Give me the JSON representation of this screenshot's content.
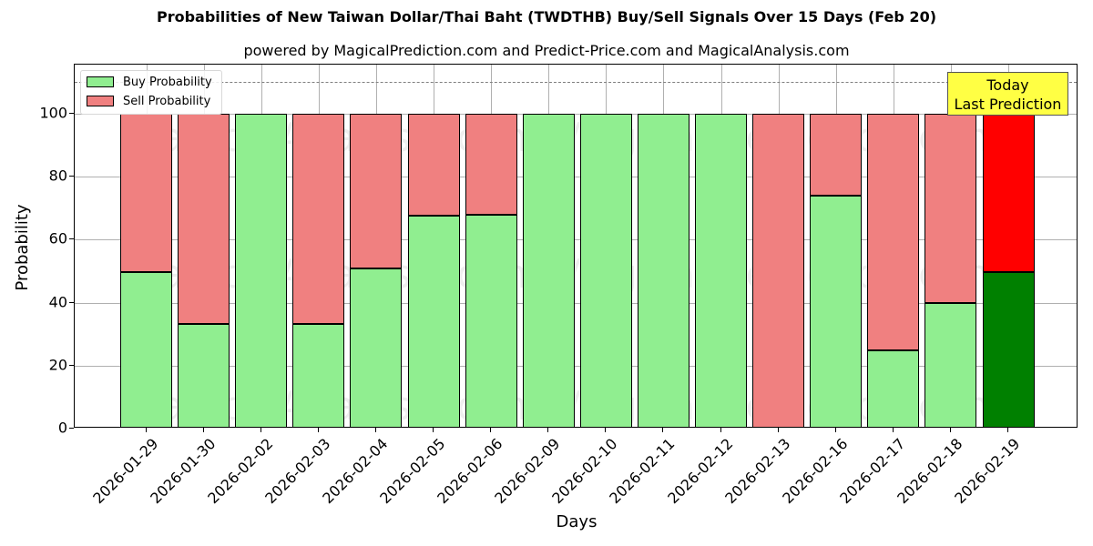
{
  "header": {
    "title": "Probabilities of New Taiwan Dollar/Thai Baht (TWDTHB) Buy/Sell Signals Over 15 Days (Feb 20)",
    "subtitle": "powered by MagicalPrediction.com and Predict-Price.com and MagicalAnalysis.com"
  },
  "axes": {
    "xlabel": "Days",
    "ylabel": "Probability",
    "yticks": [
      "0",
      "20",
      "40",
      "60",
      "80",
      "100"
    ]
  },
  "legend": {
    "buy_label": "Buy Probability",
    "sell_label": "Sell Probability"
  },
  "annotation": {
    "line1": "Today",
    "line2": "Last Prediction"
  },
  "watermarks": [
    "MagicalAnalysis.com",
    "MagicalPrediction.com"
  ],
  "colors": {
    "buy": "#90ee90",
    "sell": "#f08080",
    "today_buy": "#008000",
    "today_sell": "#ff0000",
    "annotation_bg": "#ffff44",
    "threshold_line": "#808080"
  },
  "chart_data": {
    "type": "bar",
    "stacked": true,
    "title": "Probabilities of New Taiwan Dollar/Thai Baht (TWDTHB) Buy/Sell Signals Over 15 Days (Feb 20)",
    "subtitle": "powered by MagicalPrediction.com and Predict-Price.com and MagicalAnalysis.com",
    "xlabel": "Days",
    "ylabel": "Probability",
    "ylim": [
      0,
      115
    ],
    "yticks": [
      0,
      20,
      40,
      60,
      80,
      100
    ],
    "grid": true,
    "legend_position": "upper left",
    "categories": [
      "2026-01-29",
      "2026-01-30",
      "2026-02-02",
      "2026-02-03",
      "2026-02-04",
      "2026-02-05",
      "2026-02-06",
      "2026-02-09",
      "2026-02-10",
      "2026-02-11",
      "2026-02-12",
      "2026-02-13",
      "2026-02-16",
      "2026-02-17",
      "2026-02-18",
      "2026-02-19"
    ],
    "series": [
      {
        "name": "Buy Probability",
        "values": [
          49.7,
          33.2,
          100,
          33.2,
          50.9,
          67.6,
          67.9,
          100,
          100,
          100,
          100,
          0,
          74.0,
          24.9,
          39.9,
          49.7
        ]
      },
      {
        "name": "Sell Probability",
        "values": [
          50.3,
          66.8,
          0,
          66.8,
          49.1,
          32.4,
          32.1,
          0,
          0,
          0,
          0,
          100,
          26.0,
          75.1,
          60.1,
          50.3
        ]
      }
    ],
    "threshold_line": {
      "y": 110,
      "style": "dashed"
    },
    "annotations": [
      {
        "text": "Today\nLast Prediction",
        "x": "2026-02-19",
        "y": 105
      }
    ],
    "highlight_last_bar": {
      "buy_color": "#008000",
      "sell_color": "#ff0000"
    }
  }
}
